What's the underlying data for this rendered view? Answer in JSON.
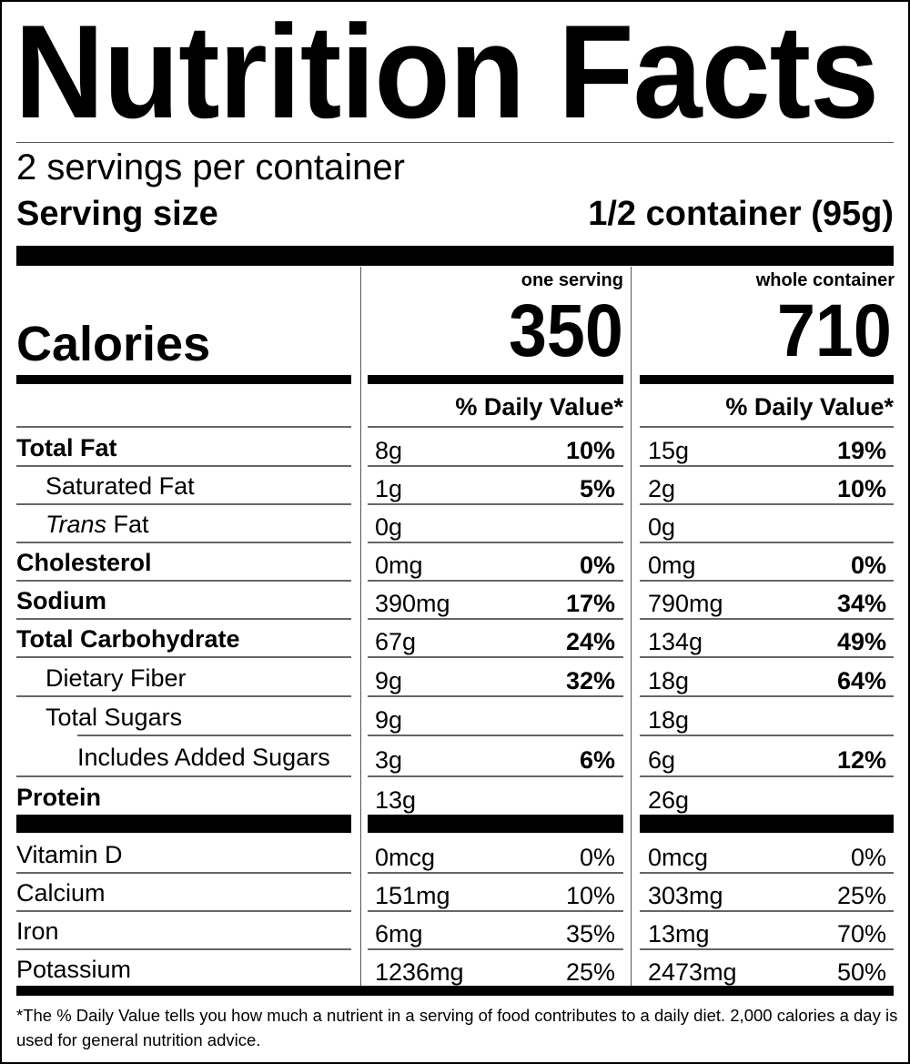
{
  "title": "Nutrition Facts",
  "servings_per_container": "2 servings per container",
  "serving_size": {
    "label": "Serving size",
    "value": "1/2 container (95g)"
  },
  "calories": {
    "label": "Calories",
    "one_serving": {
      "header": "one serving",
      "value": "350"
    },
    "whole_container": {
      "header": "whole container",
      "value": "710"
    }
  },
  "daily_value_header": "% Daily Value*",
  "nutrients": [
    {
      "name": "Total Fat",
      "bold": true,
      "indent": 0,
      "one": {
        "amount": "8g",
        "dv": "10%"
      },
      "whole": {
        "amount": "15g",
        "dv": "19%"
      }
    },
    {
      "name": "Saturated Fat",
      "bold": false,
      "indent": 1,
      "one": {
        "amount": "1g",
        "dv": "5%"
      },
      "whole": {
        "amount": "2g",
        "dv": "10%"
      }
    },
    {
      "name_italic": "Trans",
      "name": " Fat",
      "bold": false,
      "indent": 1,
      "one": {
        "amount": "0g",
        "dv": ""
      },
      "whole": {
        "amount": "0g",
        "dv": ""
      }
    },
    {
      "name": "Cholesterol",
      "bold": true,
      "indent": 0,
      "one": {
        "amount": "0mg",
        "dv": "0%"
      },
      "whole": {
        "amount": "0mg",
        "dv": "0%"
      }
    },
    {
      "name": "Sodium",
      "bold": true,
      "indent": 0,
      "one": {
        "amount": "390mg",
        "dv": "17%"
      },
      "whole": {
        "amount": "790mg",
        "dv": "34%"
      }
    },
    {
      "name": "Total Carbohydrate",
      "bold": true,
      "indent": 0,
      "one": {
        "amount": "67g",
        "dv": "24%"
      },
      "whole": {
        "amount": "134g",
        "dv": "49%"
      }
    },
    {
      "name": "Dietary Fiber",
      "bold": false,
      "indent": 1,
      "one": {
        "amount": "9g",
        "dv": "32%"
      },
      "whole": {
        "amount": "18g",
        "dv": "64%"
      }
    },
    {
      "name": "Total Sugars",
      "bold": false,
      "indent": 1,
      "one": {
        "amount": "9g",
        "dv": ""
      },
      "whole": {
        "amount": "18g",
        "dv": ""
      }
    },
    {
      "name": "Includes Added Sugars",
      "bold": false,
      "indent": 2,
      "one": {
        "amount": "3g",
        "dv": "6%"
      },
      "whole": {
        "amount": "6g",
        "dv": "12%"
      }
    },
    {
      "name": "Protein",
      "bold": true,
      "indent": 0,
      "one": {
        "amount": "13g",
        "dv": ""
      },
      "whole": {
        "amount": "26g",
        "dv": ""
      }
    }
  ],
  "vitamins": [
    {
      "name": "Vitamin D",
      "one": {
        "amount": "0mcg",
        "dv": "0%"
      },
      "whole": {
        "amount": "0mcg",
        "dv": "0%"
      }
    },
    {
      "name": "Calcium",
      "one": {
        "amount": "151mg",
        "dv": "10%"
      },
      "whole": {
        "amount": "303mg",
        "dv": "25%"
      }
    },
    {
      "name": "Iron",
      "one": {
        "amount": "6mg",
        "dv": "35%"
      },
      "whole": {
        "amount": "13mg",
        "dv": "70%"
      }
    },
    {
      "name": "Potassium",
      "one": {
        "amount": "1236mg",
        "dv": "25%"
      },
      "whole": {
        "amount": "2473mg",
        "dv": "50%"
      }
    }
  ],
  "footnote": "*The % Daily Value tells you how much a nutrient in a serving of food contributes to a daily diet. 2,000 calories a day is used for general nutrition advice."
}
